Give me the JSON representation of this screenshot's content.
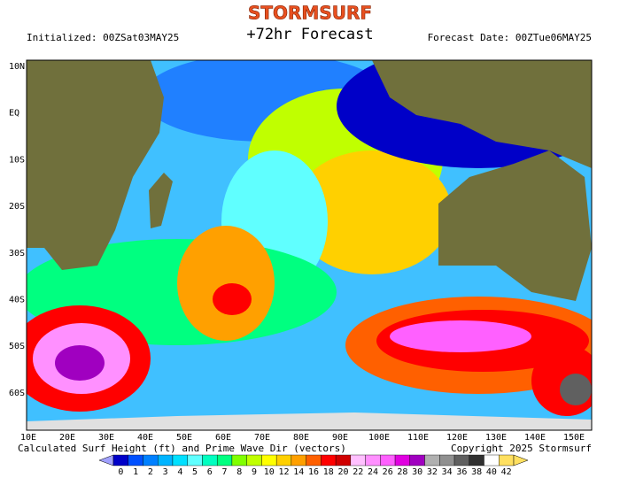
{
  "header": {
    "brand": "STORMSURF",
    "title": "+72hr Forecast",
    "initialized": "Initialized: 00ZSat03MAY25",
    "forecast_date": "Forecast Date: 00ZTue06MAY25"
  },
  "map": {
    "lat_labels": [
      "10N",
      "EQ",
      "10S",
      "20S",
      "30S",
      "40S",
      "50S",
      "60S"
    ],
    "lon_labels": [
      "10E",
      "20E",
      "30E",
      "40E",
      "50E",
      "60E",
      "70E",
      "80E",
      "90E",
      "100E",
      "110E",
      "120E",
      "130E",
      "140E",
      "150E"
    ]
  },
  "footer": {
    "caption": "Calculated Surf Height (ft) and Prime Wave Dir (vectors)",
    "copyright": "Copyright 2025 Stormsurf"
  },
  "colorbar": {
    "values": [
      0,
      1,
      2,
      3,
      4,
      5,
      6,
      7,
      8,
      9,
      10,
      12,
      14,
      16,
      18,
      20,
      22,
      24,
      26,
      28,
      30,
      32,
      34,
      36,
      38,
      40,
      42
    ],
    "colors": [
      "#0000c8",
      "#0050ff",
      "#0080ff",
      "#00b4ff",
      "#00e0ff",
      "#60ffff",
      "#00ffc0",
      "#00ff80",
      "#80ff00",
      "#c0ff00",
      "#ffff00",
      "#ffd000",
      "#ffa000",
      "#ff6000",
      "#ff0000",
      "#d00000",
      "#ffc0ff",
      "#ff90ff",
      "#ff60ff",
      "#e000e0",
      "#a000c0",
      "#b0b0b0",
      "#909090",
      "#606060",
      "#303030",
      "#ffffff",
      "#ffe060"
    ]
  }
}
